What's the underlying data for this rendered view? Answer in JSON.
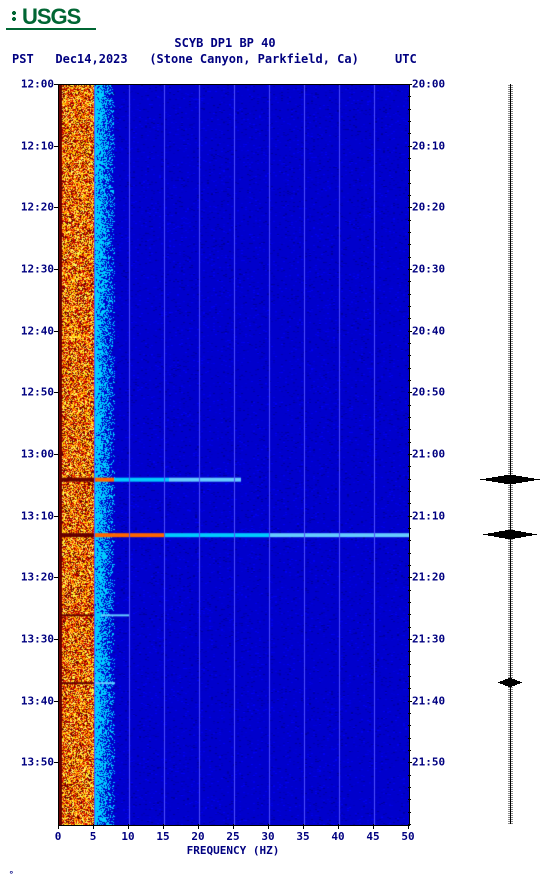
{
  "logo_text": "USGS",
  "title": "SCYB DP1 BP 40",
  "date": "Dec14,2023",
  "location": "(Stone Canyon, Parkfield, Ca)",
  "tz_left": "PST",
  "tz_right": "UTC",
  "xlabel": "FREQUENCY (HZ)",
  "xlim": [
    0,
    50
  ],
  "xtick_step": 5,
  "xtick_labels": [
    "0",
    "5",
    "10",
    "15",
    "20",
    "25",
    "30",
    "35",
    "40",
    "45",
    "50"
  ],
  "y_left_labels": [
    "12:00",
    "12:10",
    "12:20",
    "12:30",
    "12:40",
    "12:50",
    "13:00",
    "13:10",
    "13:20",
    "13:30",
    "13:40",
    "13:50"
  ],
  "y_right_labels": [
    "20:00",
    "20:10",
    "20:20",
    "20:30",
    "20:40",
    "20:50",
    "21:00",
    "21:10",
    "21:20",
    "21:30",
    "21:40",
    "21:50"
  ],
  "y_period_minutes": 120,
  "spectrogram": {
    "type": "spectrogram",
    "background_color": "#0000cc",
    "mid_color": "#00ccff",
    "hot_colors": [
      "#660000",
      "#cc0000",
      "#ff6600",
      "#ffcc00",
      "#ffff66"
    ],
    "gridline_color": "#5050ff",
    "low_freq_band_hz": [
      0,
      5
    ],
    "transition_band_hz": [
      5,
      8
    ],
    "events": [
      {
        "time_min": 64,
        "freq_extent_hz": 26,
        "intensity": "high"
      },
      {
        "time_min": 73,
        "freq_extent_hz": 50,
        "intensity": "high"
      },
      {
        "time_min": 86,
        "freq_extent_hz": 10,
        "intensity": "med"
      },
      {
        "time_min": 97,
        "freq_extent_hz": 8,
        "intensity": "med"
      }
    ]
  },
  "seismogram": {
    "baseline_color": "#000000",
    "events": [
      {
        "time_min": 64,
        "amplitude": 1.0
      },
      {
        "time_min": 73,
        "amplitude": 0.9
      },
      {
        "time_min": 97,
        "amplitude": 0.4
      }
    ]
  },
  "title_fontsize": 12,
  "label_fontsize": 11,
  "font_color": "#000080"
}
